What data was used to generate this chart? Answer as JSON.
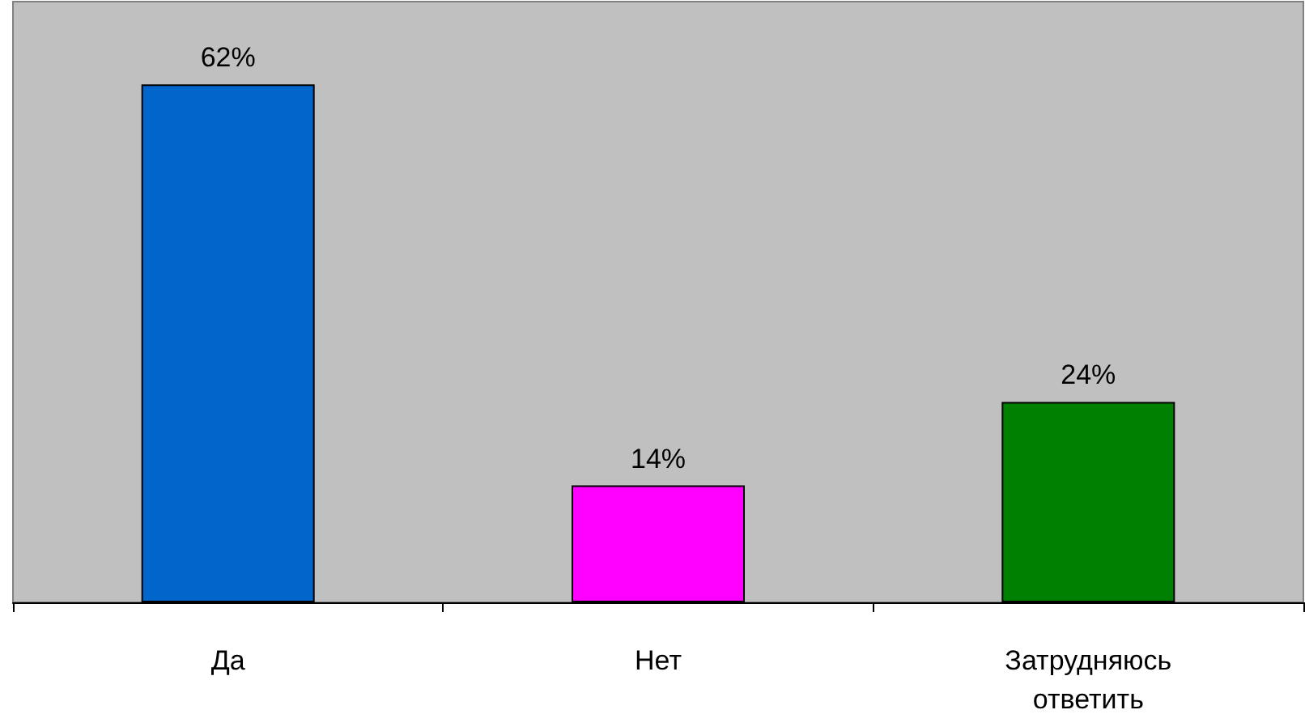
{
  "chart_data": {
    "type": "bar",
    "categories": [
      "Да",
      "Нет",
      "Затрудняюсь ответить"
    ],
    "values": [
      62,
      14,
      24
    ],
    "colors": [
      "#0066cc",
      "#ff00ff",
      "#008000"
    ],
    "value_labels": [
      "62%",
      "14%",
      "24%"
    ]
  }
}
